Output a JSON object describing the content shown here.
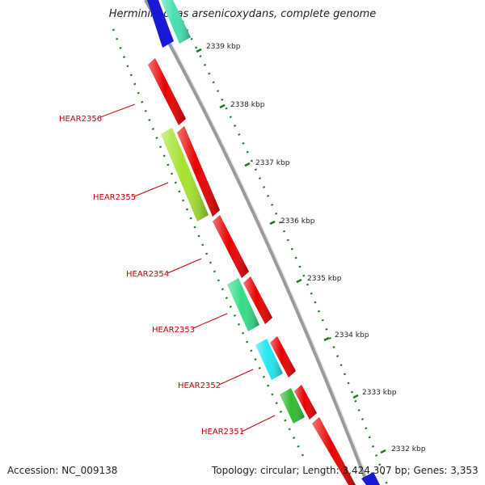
{
  "title": "Herminiimonas arsenicoxydans, complete genome",
  "accession_text": "Accession: NC_009138",
  "topology_text": "Topology: circular; Length: 3,424,307 bp; Genes: 3,353",
  "tick_labels": [
    "2339 kbp",
    "2338 kbp",
    "2337 kbp",
    "2336 kbp",
    "2335 kbp",
    "2334 kbp",
    "2333 kbp",
    "2332 kbp"
  ],
  "gene_labels": [
    "HEAR2356",
    "HEAR2355",
    "HEAR2354",
    "HEAR2353",
    "HEAR2352",
    "HEAR2351"
  ],
  "colors": {
    "backbone": "#9a9a9a",
    "tick": "#1a7a1a",
    "label_line": "#cc0000",
    "red": "#e80000",
    "yellowgreen": "#a6e22e",
    "seagreen": "#33dd88",
    "cyan": "#22e6f0",
    "green": "#33bb33",
    "blue": "#1a1ad6",
    "teal": "#44e0b0"
  }
}
